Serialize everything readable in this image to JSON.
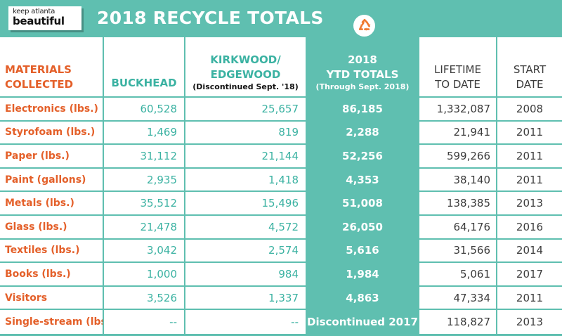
{
  "header": {
    "logo": {
      "line1": "keep atlanta",
      "line2": "beautiful"
    },
    "title": "2018 RECYCLE TOTALS",
    "badge_icon": "recycle-icon",
    "colors": {
      "teal": "#5fbfb0",
      "orange": "#e4602a",
      "teal_text": "#3bb2a2",
      "gray_text": "#3c3c3c"
    }
  },
  "table": {
    "headers": {
      "materials": [
        "MATERIALS",
        "COLLECTED"
      ],
      "buckhead": "BUCKHEAD",
      "kirkwood": [
        "KIRKWOOD/",
        "EDGEWOOD"
      ],
      "kirkwood_note": "(Discontinued Sept. '18)",
      "ytd": [
        "2018",
        "YTD TOTALS"
      ],
      "ytd_note": "(Through Sept. 2018)",
      "lifetime": [
        "LIFETIME",
        "TO DATE"
      ],
      "start": [
        "START",
        "DATE"
      ]
    },
    "rows": [
      {
        "material": "Electronics (lbs.)",
        "buckhead": "60,528",
        "kirkwood": "25,657",
        "ytd": "86,185",
        "lifetime": "1,332,087",
        "start": "2008"
      },
      {
        "material": "Styrofoam (lbs.)",
        "buckhead": "1,469",
        "kirkwood": "819",
        "ytd": "2,288",
        "lifetime": "21,941",
        "start": "2011"
      },
      {
        "material": "Paper (lbs.)",
        "buckhead": "31,112",
        "kirkwood": "21,144",
        "ytd": "52,256",
        "lifetime": "599,266",
        "start": "2011"
      },
      {
        "material": "Paint (gallons)",
        "buckhead": "2,935",
        "kirkwood": "1,418",
        "ytd": "4,353",
        "lifetime": "38,140",
        "start": "2011"
      },
      {
        "material": "Metals (lbs.)",
        "buckhead": "35,512",
        "kirkwood": "15,496",
        "ytd": "51,008",
        "lifetime": "138,385",
        "start": "2013"
      },
      {
        "material": "Glass (lbs.)",
        "buckhead": "21,478",
        "kirkwood": "4,572",
        "ytd": "26,050",
        "lifetime": "64,176",
        "start": "2016"
      },
      {
        "material": "Textiles (lbs.)",
        "buckhead": "3,042",
        "kirkwood": "2,574",
        "ytd": "5,616",
        "lifetime": "31,566",
        "start": "2014"
      },
      {
        "material": "Books (lbs.)",
        "buckhead": "1,000",
        "kirkwood": "984",
        "ytd": "1,984",
        "lifetime": "5,061",
        "start": "2017"
      },
      {
        "material": "Visitors",
        "buckhead": "3,526",
        "kirkwood": "1,337",
        "ytd": "4,863",
        "lifetime": "47,334",
        "start": "2011"
      },
      {
        "material": "Single-stream (lbs.)",
        "buckhead": "--",
        "kirkwood": "--",
        "ytd": "Discontinued 2017",
        "lifetime": "118,827",
        "start": "2013"
      }
    ]
  }
}
